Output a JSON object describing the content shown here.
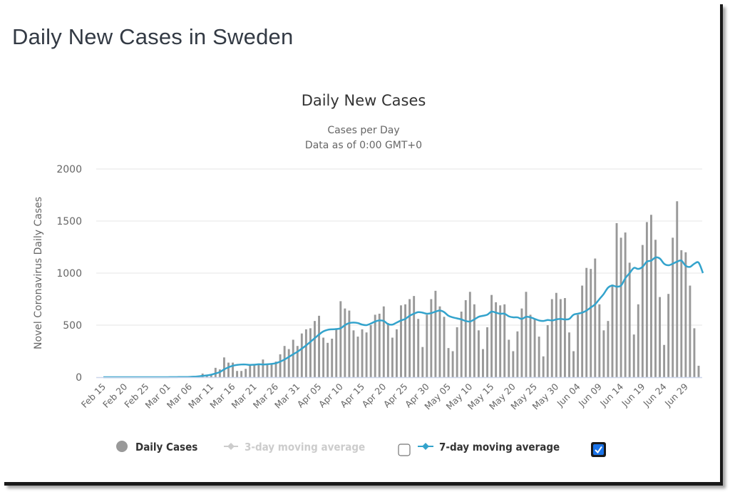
{
  "page": {
    "title": "Daily New Cases in Sweden"
  },
  "legend": {
    "items": [
      {
        "label": "Daily Cases",
        "symbol": "circle",
        "color": "#999999",
        "enabled": true
      },
      {
        "label": "3-day moving average",
        "symbol": "line-diamond",
        "color": "#cccccc",
        "enabled": false,
        "checkbox_checked": false
      },
      {
        "label": "7-day moving average",
        "symbol": "line-diamond",
        "color": "#33a3cc",
        "enabled": true,
        "checkbox_checked": true
      }
    ]
  },
  "colors": {
    "bars": "#999999",
    "moving_average_line": "#33a3cc",
    "gridline": "#e6e6e6",
    "checkbox_checked": "#1a73e8"
  },
  "chart_data": {
    "type": "bar",
    "title": "Daily New Cases",
    "subtitle_lines": [
      "Cases per Day",
      "Data as of 0:00 GMT+0"
    ],
    "xlabel": "",
    "ylabel": "Novel Coronavirus Daily Cases",
    "ylim": [
      0,
      2000
    ],
    "yticks": [
      0,
      500,
      1000,
      1500,
      2000
    ],
    "grid": true,
    "legend_position": "bottom",
    "x_start": "Feb 15",
    "x_end": "Jun 29",
    "xtick_labels": [
      "Feb 15",
      "Feb 20",
      "Feb 25",
      "Mar 01",
      "Mar 06",
      "Mar 11",
      "Mar 16",
      "Mar 21",
      "Mar 26",
      "Mar 31",
      "Apr 05",
      "Apr 10",
      "Apr 15",
      "Apr 20",
      "Apr 25",
      "Apr 30",
      "May 05",
      "May 10",
      "May 15",
      "May 20",
      "May 25",
      "May 30",
      "Jun 04",
      "Jun 09",
      "Jun 14",
      "Jun 19",
      "Jun 24",
      "Jun 29"
    ],
    "xtick_every_days": 5,
    "series": [
      {
        "name": "Daily Cases",
        "type": "bar",
        "values": [
          0,
          0,
          0,
          0,
          0,
          0,
          0,
          0,
          0,
          0,
          0,
          0,
          0,
          0,
          0,
          1,
          0,
          2,
          5,
          2,
          4,
          8,
          12,
          35,
          15,
          25,
          90,
          75,
          190,
          140,
          140,
          60,
          60,
          80,
          120,
          120,
          130,
          170,
          120,
          130,
          150,
          220,
          300,
          270,
          360,
          300,
          420,
          460,
          470,
          540,
          590,
          380,
          330,
          370,
          470,
          730,
          660,
          640,
          450,
          390,
          460,
          430,
          500,
          600,
          610,
          680,
          520,
          380,
          460,
          690,
          700,
          750,
          780,
          560,
          290,
          600,
          750,
          830,
          680,
          580,
          280,
          250,
          480,
          630,
          740,
          820,
          700,
          450,
          270,
          480,
          790,
          720,
          690,
          700,
          360,
          250,
          440,
          660,
          820,
          600,
          560,
          390,
          200,
          500,
          750,
          810,
          750,
          760,
          430,
          250,
          600,
          880,
          1050,
          1040,
          1140,
          700,
          450,
          540,
          890,
          1480,
          1340,
          1390,
          1100,
          410,
          700,
          1270,
          1490,
          1560,
          1320,
          770,
          310,
          800,
          1340,
          1690,
          1220,
          1200,
          880,
          470,
          110
        ]
      },
      {
        "name": "7-day moving average",
        "type": "line",
        "values": [
          0,
          0,
          0,
          0,
          0,
          0,
          0,
          0,
          0,
          0,
          0,
          0,
          0,
          0,
          0,
          0,
          1,
          1,
          2,
          2,
          3,
          5,
          8,
          13,
          17,
          24,
          36,
          50,
          75,
          95,
          110,
          118,
          122,
          122,
          118,
          120,
          124,
          122,
          124,
          128,
          135,
          150,
          170,
          195,
          220,
          245,
          275,
          305,
          340,
          375,
          410,
          440,
          455,
          460,
          462,
          470,
          500,
          520,
          525,
          520,
          505,
          500,
          515,
          535,
          545,
          540,
          510,
          505,
          525,
          545,
          560,
          590,
          610,
          625,
          620,
          610,
          615,
          630,
          640,
          625,
          590,
          575,
          565,
          555,
          540,
          535,
          555,
          580,
          590,
          600,
          630,
          620,
          610,
          610,
          585,
          575,
          575,
          560,
          580,
          575,
          560,
          545,
          540,
          550,
          545,
          555,
          560,
          555,
          560,
          600,
          610,
          620,
          640,
          670,
          700,
          750,
          800,
          860,
          880,
          870,
          880,
          950,
          1000,
          1050,
          1040,
          1060,
          1110,
          1120,
          1150,
          1140,
          1090,
          1075,
          1090,
          1110,
          1120,
          1070,
          1060,
          1090,
          1100,
          1000
        ]
      }
    ]
  }
}
